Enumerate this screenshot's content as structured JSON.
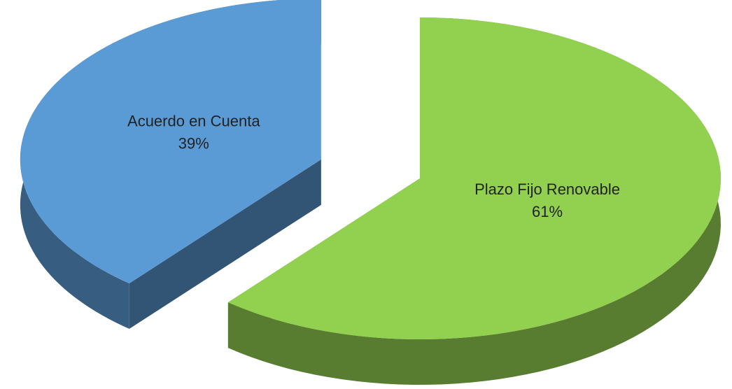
{
  "chart_data": {
    "type": "pie",
    "categories": [
      "Plazo Fijo Renovable",
      "Acuerdo en Cuenta"
    ],
    "values": [
      61,
      39
    ],
    "value_labels": [
      "61%",
      "39%"
    ],
    "colors": [
      "#92d050",
      "#5b9bd5"
    ],
    "exploded": [
      false,
      true
    ]
  }
}
